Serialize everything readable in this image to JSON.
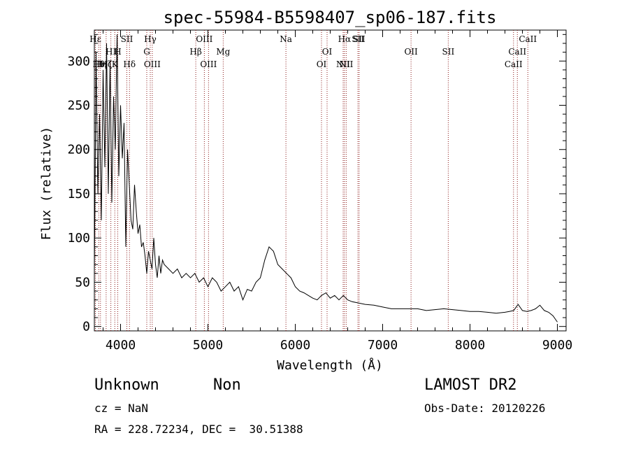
{
  "chart_data": {
    "type": "line",
    "title": "spec-55984-B5598407_sp06-187.fits",
    "xlabel": "Wavelength (Å)",
    "ylabel": "Flux (relative)",
    "xlim": [
      3700,
      9100
    ],
    "ylim": [
      -5,
      335
    ],
    "xticks": [
      4000,
      5000,
      6000,
      7000,
      8000,
      9000
    ],
    "yticks": [
      0,
      50,
      100,
      150,
      200,
      250,
      300
    ],
    "grid": false,
    "line_color": "#000000",
    "marker_color": "#8b1a1a",
    "series": [
      {
        "values_x": [
          3700,
          3720,
          3740,
          3760,
          3780,
          3800,
          3820,
          3840,
          3860,
          3880,
          3900,
          3920,
          3940,
          3960,
          3980,
          4000,
          4020,
          4040,
          4060,
          4080,
          4100,
          4120,
          4140,
          4160,
          4180,
          4200,
          4220,
          4240,
          4260,
          4280,
          4300,
          4320,
          4340,
          4360,
          4380,
          4400,
          4420,
          4440,
          4460,
          4480,
          4500,
          4550,
          4600,
          4650,
          4700,
          4750,
          4800,
          4850,
          4900,
          4950,
          5000,
          5050,
          5100,
          5150,
          5200,
          5250,
          5300,
          5350,
          5400,
          5450,
          5500,
          5550,
          5600,
          5650,
          5700,
          5750,
          5800,
          5850,
          5900,
          5950,
          6000,
          6050,
          6100,
          6150,
          6200,
          6250,
          6300,
          6350,
          6400,
          6450,
          6500,
          6550,
          6600,
          6650,
          6700,
          6800,
          6900,
          7000,
          7100,
          7200,
          7300,
          7400,
          7500,
          7600,
          7700,
          7800,
          7900,
          8000,
          8100,
          8200,
          8300,
          8400,
          8450,
          8500,
          8550,
          8600,
          8650,
          8700,
          8750,
          8800,
          8850,
          8900,
          8950,
          9000
        ],
        "values_y": [
          60,
          310,
          150,
          240,
          120,
          290,
          180,
          320,
          150,
          300,
          140,
          260,
          200,
          330,
          170,
          250,
          190,
          230,
          90,
          200,
          160,
          120,
          110,
          160,
          130,
          105,
          115,
          90,
          95,
          80,
          60,
          85,
          75,
          65,
          100,
          70,
          55,
          80,
          60,
          75,
          70,
          65,
          60,
          65,
          55,
          60,
          55,
          60,
          50,
          55,
          45,
          55,
          50,
          40,
          45,
          50,
          40,
          45,
          30,
          42,
          40,
          50,
          55,
          75,
          90,
          85,
          70,
          65,
          60,
          55,
          45,
          40,
          38,
          35,
          32,
          30,
          35,
          38,
          32,
          35,
          30,
          35,
          30,
          28,
          27,
          25,
          24,
          22,
          20,
          20,
          20,
          20,
          18,
          19,
          20,
          19,
          18,
          17,
          17,
          16,
          15,
          16,
          17,
          18,
          25,
          18,
          17,
          18,
          20,
          24,
          18,
          16,
          12,
          5
        ]
      }
    ],
    "line_markers": [
      {
        "wave": 3712,
        "label": "Hε",
        "row": 1
      },
      {
        "wave": 3750,
        "label": "Hθ",
        "row": 3
      },
      {
        "wave": 3770,
        "label": "Hη",
        "row": 3
      },
      {
        "wave": 3835,
        "label": "Hζ",
        "row": 3
      },
      {
        "wave": 3889,
        "label": "HI",
        "row": 2
      },
      {
        "wave": 3934,
        "label": "K",
        "row": 3
      },
      {
        "wave": 3968,
        "label": "H",
        "row": 2
      },
      {
        "wave": 4072,
        "label": "SII",
        "row": 1
      },
      {
        "wave": 4102,
        "label": "Hδ",
        "row": 3
      },
      {
        "wave": 4300,
        "label": "G",
        "row": 2
      },
      {
        "wave": 4340,
        "label": "Hγ",
        "row": 1
      },
      {
        "wave": 4363,
        "label": "OIII",
        "row": 3
      },
      {
        "wave": 4861,
        "label": "Hβ",
        "row": 2
      },
      {
        "wave": 4959,
        "label": "OIII",
        "row": 1
      },
      {
        "wave": 5007,
        "label": "OIII",
        "row": 3
      },
      {
        "wave": 5175,
        "label": "Mg",
        "row": 2
      },
      {
        "wave": 5893,
        "label": "Na",
        "row": 1
      },
      {
        "wave": 6300,
        "label": "OI",
        "row": 3
      },
      {
        "wave": 6364,
        "label": "OI",
        "row": 2
      },
      {
        "wave": 6548,
        "label": "NII",
        "row": 3
      },
      {
        "wave": 6563,
        "label": "Hα",
        "row": 1
      },
      {
        "wave": 6583,
        "label": "NII",
        "row": 3
      },
      {
        "wave": 6717,
        "label": "SII",
        "row": 1
      },
      {
        "wave": 6731,
        "label": "SII",
        "row": 1
      },
      {
        "wave": 7325,
        "label": "OII",
        "row": 2
      },
      {
        "wave": 7751,
        "label": "SII",
        "row": 2
      },
      {
        "wave": 8498,
        "label": "CaII",
        "row": 3
      },
      {
        "wave": 8542,
        "label": "CaII",
        "row": 2
      },
      {
        "wave": 8662,
        "label": "CaII",
        "row": 1
      }
    ]
  },
  "info": {
    "object_class": "Unknown",
    "object_subclass": "Non",
    "survey": "LAMOST DR2",
    "redshift_line": "cz = NaN",
    "obs_date_line": "Obs-Date: 20120226",
    "coords_line": "RA = 228.72234, DEC =  30.51388"
  }
}
